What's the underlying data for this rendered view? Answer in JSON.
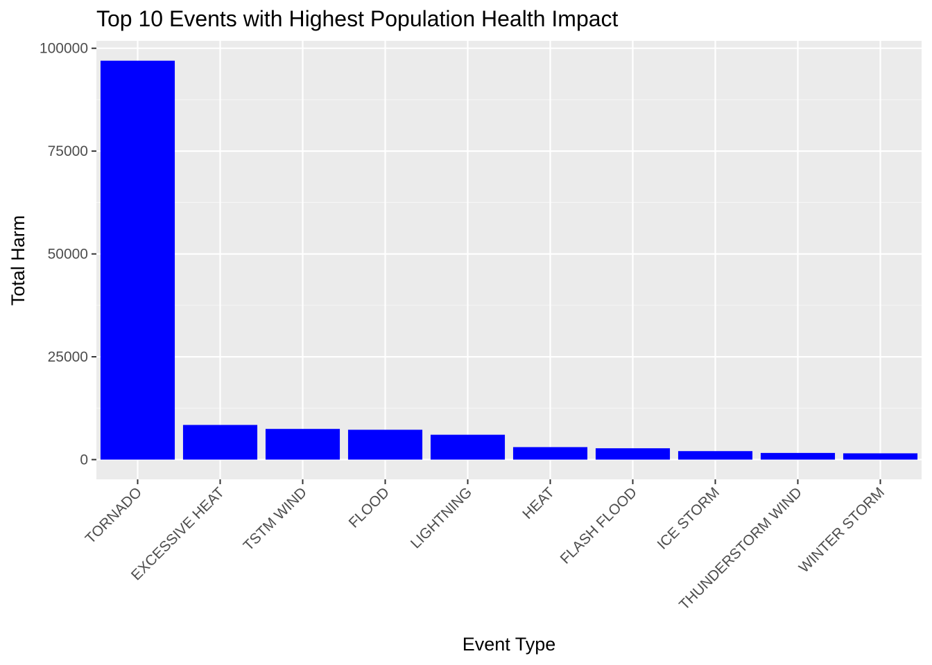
{
  "chart_data": {
    "type": "bar",
    "title": "Top 10 Events with Highest Population Health Impact",
    "xlabel": "Event Type",
    "ylabel": "Total Harm",
    "categories": [
      "TORNADO",
      "EXCESSIVE HEAT",
      "TSTM WIND",
      "FLOOD",
      "LIGHTNING",
      "HEAT",
      "FLASH FLOOD",
      "ICE STORM",
      "THUNDERSTORM WIND",
      "WINTER STORM"
    ],
    "values": [
      96979,
      8428,
      7461,
      7259,
      6046,
      3037,
      2755,
      2064,
      1621,
      1527
    ],
    "ylim": [
      -4800,
      101800
    ],
    "yticks": [
      0,
      25000,
      50000,
      75000,
      100000
    ],
    "ytick_labels": [
      "0",
      "25000",
      "50000",
      "75000",
      "100000"
    ],
    "grid": true,
    "legend": "none",
    "colors": {
      "bar": "#0000ff",
      "panel": "#ebebeb",
      "grid_major": "#ffffff",
      "grid_minor": "#f5f5f5",
      "tick": "#333333"
    }
  }
}
